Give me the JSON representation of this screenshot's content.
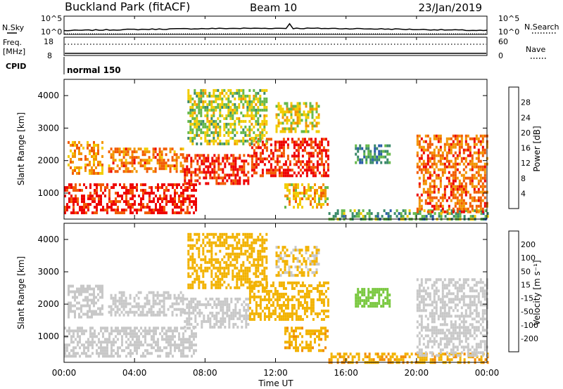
{
  "header": {
    "station": "Buckland Park (fitACF)",
    "beam": "Beam 10",
    "date": "23/Jan/2019"
  },
  "sky_panel": {
    "left_label": "N.Sky",
    "right_label": "N.Search",
    "tick_top_left": "10^5",
    "tick_bottom_left": "10^0",
    "tick_top_right": "10^5",
    "tick_bottom_right": "10^0"
  },
  "freq_panel": {
    "label_line1": "Freq.",
    "label_line2": "[MHz]",
    "left_top": "18",
    "left_bottom": "8",
    "right_top": "60",
    "right_bottom": "0",
    "right_label": "Nave"
  },
  "cpid_panel": {
    "label": "CPID",
    "program": "normal 150"
  },
  "chart_data": [
    {
      "type": "heatmap",
      "name": "Power",
      "ylabel": "Slant Range [km]",
      "yticks": [
        "1000",
        "2000",
        "3000",
        "4000"
      ],
      "ylim": [
        200,
        4500
      ],
      "colorbar_label": "Power [dB]",
      "colorbar_ticks": [
        "4",
        "8",
        "12",
        "16",
        "20",
        "24",
        "28"
      ],
      "colorbar_colors": [
        "#0000ff",
        "#2a5caa",
        "#3a8a6a",
        "#66b84a",
        "#f2cc00",
        "#f29400",
        "#f25a00",
        "#ee0000"
      ],
      "regions": [
        {
          "t": [
            0.0,
            7.5
          ],
          "r": [
            400,
            1300
          ],
          "level": 30
        },
        {
          "t": [
            0.2,
            2.2
          ],
          "r": [
            1600,
            2600
          ],
          "level": 22
        },
        {
          "t": [
            2.5,
            6.8
          ],
          "r": [
            1700,
            2400
          ],
          "level": 24
        },
        {
          "t": [
            6.8,
            10.5
          ],
          "r": [
            1300,
            2200
          ],
          "level": 29
        },
        {
          "t": [
            10.5,
            15.0
          ],
          "r": [
            1500,
            2700
          ],
          "level": 29
        },
        {
          "t": [
            7.0,
            11.5
          ],
          "r": [
            2500,
            4200
          ],
          "level": 16
        },
        {
          "t": [
            12.0,
            14.5
          ],
          "r": [
            2900,
            3800
          ],
          "level": 18
        },
        {
          "t": [
            12.5,
            15.0
          ],
          "r": [
            600,
            1300
          ],
          "level": 20
        },
        {
          "t": [
            15.0,
            24.0
          ],
          "r": [
            200,
            500
          ],
          "level": 12
        },
        {
          "t": [
            16.5,
            18.5
          ],
          "r": [
            1900,
            2500
          ],
          "level": 10
        },
        {
          "t": [
            20.0,
            24.0
          ],
          "r": [
            400,
            2800
          ],
          "level": 25
        }
      ]
    },
    {
      "type": "heatmap",
      "name": "Velocity",
      "ylabel": "Slant Range [km]",
      "yticks": [
        "1000",
        "2000",
        "3000",
        "4000"
      ],
      "ylim": [
        200,
        4500
      ],
      "colorbar_label": "Velocity [m s⁻¹]",
      "colorbar_ticks": [
        "200",
        "100",
        "50",
        "15",
        "-15",
        "-50",
        "-100",
        "-200"
      ],
      "colorbar_colors": [
        "#1e3caa",
        "#2e6c80",
        "#3c9a4a",
        "#7ac840",
        "#c8c8c8",
        "#f2b200",
        "#f28c00",
        "#f25a00",
        "#ee0000"
      ],
      "regions": [
        {
          "t": [
            0.0,
            7.5
          ],
          "r": [
            400,
            1300
          ],
          "level": 0
        },
        {
          "t": [
            0.2,
            2.2
          ],
          "r": [
            1600,
            2600
          ],
          "level": 0
        },
        {
          "t": [
            2.5,
            6.8
          ],
          "r": [
            1700,
            2400
          ],
          "level": 0
        },
        {
          "t": [
            6.8,
            10.5
          ],
          "r": [
            1300,
            2200
          ],
          "level": 0
        },
        {
          "t": [
            10.5,
            15.0
          ],
          "r": [
            1500,
            2700
          ],
          "level": -30
        },
        {
          "t": [
            7.0,
            11.5
          ],
          "r": [
            2500,
            4200
          ],
          "level": -30
        },
        {
          "t": [
            12.0,
            14.5
          ],
          "r": [
            2900,
            3800
          ],
          "level": -20
        },
        {
          "t": [
            12.5,
            15.0
          ],
          "r": [
            600,
            1300
          ],
          "level": -40
        },
        {
          "t": [
            15.0,
            24.0
          ],
          "r": [
            200,
            500
          ],
          "level": -45
        },
        {
          "t": [
            16.5,
            18.5
          ],
          "r": [
            1900,
            2500
          ],
          "level": 30
        },
        {
          "t": [
            20.0,
            24.0
          ],
          "r": [
            400,
            2800
          ],
          "level": 0
        }
      ]
    }
  ],
  "time_axis": {
    "ticks": [
      "00:00",
      "04:00",
      "08:00",
      "12:00",
      "16:00",
      "20:00",
      "00:00"
    ],
    "xlabel": "Time UT",
    "xlim": [
      0,
      24
    ]
  }
}
